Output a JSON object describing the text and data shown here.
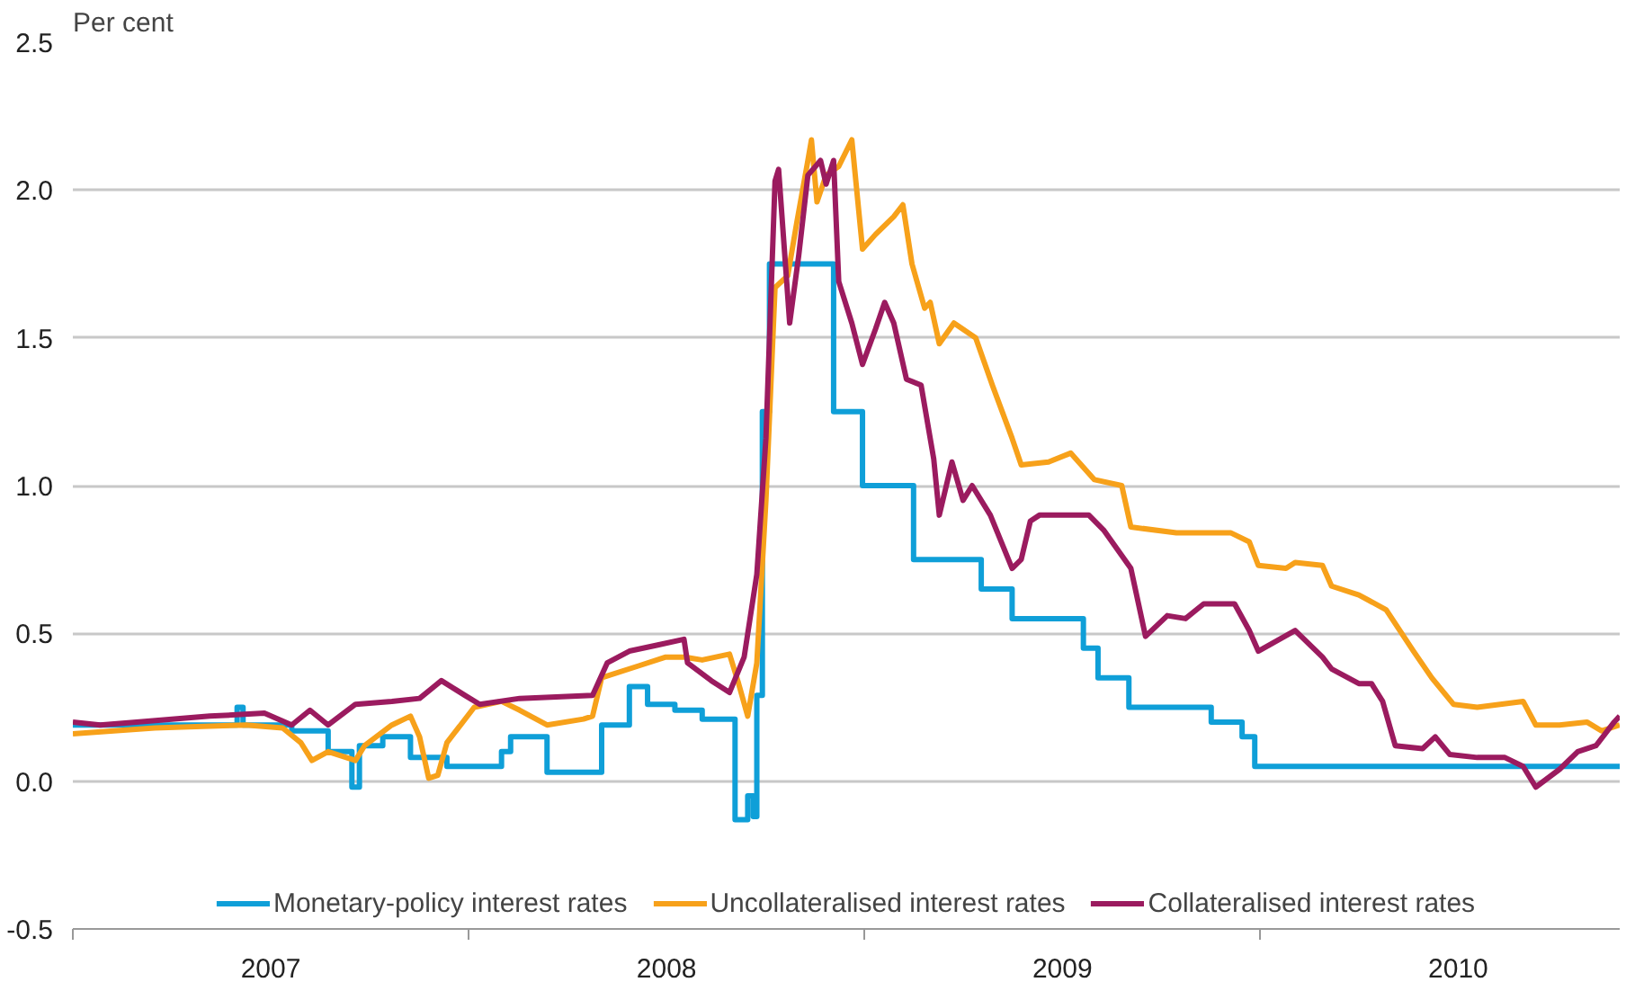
{
  "chart_data": {
    "type": "line",
    "ylabel": "Per cent",
    "xlim": [
      2007,
      2010.908
    ],
    "ylim": [
      -0.5,
      2.5
    ],
    "xticks": [
      {
        "value": 2007,
        "label": null
      },
      {
        "value": 2007.5,
        "label": "2007"
      },
      {
        "value": 2008,
        "label": null
      },
      {
        "value": 2008.5,
        "label": "2008"
      },
      {
        "value": 2009,
        "label": null
      },
      {
        "value": 2009.5,
        "label": "2009"
      },
      {
        "value": 2010,
        "label": null
      },
      {
        "value": 2010.5,
        "label": "2010"
      }
    ],
    "yticks": [
      {
        "value": -0.5,
        "label": "-0.5"
      },
      {
        "value": 0,
        "label": "0.0"
      },
      {
        "value": 0.5,
        "label": "0.5"
      },
      {
        "value": 1,
        "label": "1.0"
      },
      {
        "value": 1.5,
        "label": "1.5"
      },
      {
        "value": 2,
        "label": "2.0"
      },
      {
        "value": 2.5,
        "label": "2.5"
      }
    ],
    "grid": "y",
    "legend": "bottom",
    "series": [
      {
        "name": "Monetary-policy interest rates",
        "type": "step",
        "color": "#0f9fd8",
        "x": [
          2007.0,
          2007.415,
          2007.43,
          2007.553,
          2007.645,
          2007.705,
          2007.724,
          2007.783,
          2007.853,
          2007.945,
          2008.083,
          2008.106,
          2008.198,
          2008.336,
          2008.406,
          2008.452,
          2008.521,
          2008.59,
          2008.673,
          2008.705,
          2008.719,
          2008.728,
          2008.742,
          2008.76,
          2008.922,
          2008.995,
          2009.124,
          2009.295,
          2009.373,
          2009.553,
          2009.59,
          2009.668,
          2009.876,
          2009.954,
          2009.986,
          2010.908
        ],
        "values": [
          0.19,
          0.25,
          0.19,
          0.17,
          0.1,
          -0.02,
          0.12,
          0.15,
          0.08,
          0.05,
          0.1,
          0.15,
          0.03,
          0.19,
          0.32,
          0.26,
          0.24,
          0.21,
          -0.13,
          -0.05,
          -0.12,
          0.29,
          1.25,
          1.75,
          1.25,
          1.0,
          0.75,
          0.65,
          0.55,
          0.45,
          0.35,
          0.25,
          0.2,
          0.15,
          0.05,
          0.05
        ]
      },
      {
        "name": "Uncollateralised interest rates",
        "color": "#f7a11a",
        "x": [
          2007.0,
          2007.207,
          2007.438,
          2007.53,
          2007.576,
          2007.604,
          2007.645,
          2007.714,
          2007.737,
          2007.806,
          2007.853,
          2007.876,
          2007.899,
          2007.922,
          2007.945,
          2008.014,
          2008.083,
          2008.129,
          2008.198,
          2008.29,
          2008.313,
          2008.336,
          2008.429,
          2008.498,
          2008.544,
          2008.59,
          2008.659,
          2008.682,
          2008.705,
          2008.728,
          2008.751,
          2008.774,
          2008.806,
          2008.829,
          2008.857,
          2008.866,
          2008.88,
          2008.903,
          2008.935,
          2008.968,
          2008.995,
          2009.028,
          2009.074,
          2009.097,
          2009.12,
          2009.152,
          2009.166,
          2009.189,
          2009.226,
          2009.281,
          2009.323,
          2009.373,
          2009.396,
          2009.465,
          2009.521,
          2009.581,
          2009.65,
          2009.673,
          2009.788,
          2009.926,
          2009.972,
          2009.995,
          2010.065,
          2010.088,
          2010.157,
          2010.18,
          2010.249,
          2010.318,
          2010.387,
          2010.433,
          2010.488,
          2010.548,
          2010.664,
          2010.696,
          2010.756,
          2010.825,
          2010.862,
          2010.908
        ],
        "values": [
          0.16,
          0.18,
          0.19,
          0.18,
          0.13,
          0.07,
          0.1,
          0.07,
          0.12,
          0.19,
          0.22,
          0.15,
          0.01,
          0.02,
          0.13,
          0.25,
          0.27,
          0.24,
          0.19,
          0.21,
          0.22,
          0.35,
          0.39,
          0.42,
          0.42,
          0.41,
          0.43,
          0.33,
          0.22,
          0.4,
          0.95,
          1.67,
          1.71,
          1.89,
          2.1,
          2.17,
          1.96,
          2.05,
          2.08,
          2.17,
          1.8,
          1.85,
          1.91,
          1.95,
          1.75,
          1.6,
          1.62,
          1.48,
          1.55,
          1.5,
          1.34,
          1.16,
          1.07,
          1.08,
          1.11,
          1.02,
          1.0,
          0.86,
          0.84,
          0.84,
          0.81,
          0.73,
          0.72,
          0.74,
          0.73,
          0.66,
          0.63,
          0.58,
          0.44,
          0.35,
          0.26,
          0.25,
          0.27,
          0.19,
          0.19,
          0.2,
          0.17,
          0.19
        ]
      },
      {
        "name": "Collateralised interest rates",
        "color": "#9b1b5f",
        "x": [
          2007.0,
          2007.069,
          2007.161,
          2007.346,
          2007.484,
          2007.553,
          2007.599,
          2007.645,
          2007.714,
          2007.806,
          2007.876,
          2007.931,
          2007.991,
          2008.028,
          2008.129,
          2008.313,
          2008.35,
          2008.406,
          2008.475,
          2008.544,
          2008.553,
          2008.613,
          2008.659,
          2008.696,
          2008.728,
          2008.751,
          2008.774,
          2008.783,
          2008.811,
          2008.834,
          2008.857,
          2008.889,
          2008.903,
          2008.922,
          2008.935,
          2008.968,
          2008.995,
          2009.028,
          2009.051,
          2009.074,
          2009.106,
          2009.143,
          2009.175,
          2009.189,
          2009.221,
          2009.249,
          2009.272,
          2009.318,
          2009.373,
          2009.396,
          2009.419,
          2009.442,
          2009.567,
          2009.604,
          2009.673,
          2009.71,
          2009.765,
          2009.811,
          2009.857,
          2009.935,
          2009.972,
          2009.995,
          2010.088,
          2010.157,
          2010.18,
          2010.249,
          2010.281,
          2010.309,
          2010.341,
          2010.41,
          2010.442,
          2010.479,
          2010.548,
          2010.618,
          2010.664,
          2010.696,
          2010.756,
          2010.802,
          2010.848,
          2010.894,
          2010.908
        ],
        "values": [
          0.2,
          0.19,
          0.2,
          0.22,
          0.23,
          0.19,
          0.24,
          0.19,
          0.26,
          0.27,
          0.28,
          0.34,
          0.29,
          0.26,
          0.28,
          0.29,
          0.4,
          0.44,
          0.46,
          0.48,
          0.4,
          0.34,
          0.3,
          0.42,
          0.7,
          1.16,
          2.03,
          2.07,
          1.55,
          1.78,
          2.05,
          2.1,
          2.02,
          2.1,
          1.69,
          1.55,
          1.41,
          1.53,
          1.62,
          1.55,
          1.36,
          1.34,
          1.09,
          0.9,
          1.08,
          0.95,
          1.0,
          0.9,
          0.72,
          0.75,
          0.88,
          0.9,
          0.9,
          0.85,
          0.72,
          0.49,
          0.56,
          0.55,
          0.6,
          0.6,
          0.51,
          0.44,
          0.51,
          0.42,
          0.38,
          0.33,
          0.33,
          0.27,
          0.12,
          0.11,
          0.15,
          0.09,
          0.08,
          0.08,
          0.05,
          -0.02,
          0.04,
          0.1,
          0.12,
          0.2,
          0.22
        ]
      }
    ]
  }
}
